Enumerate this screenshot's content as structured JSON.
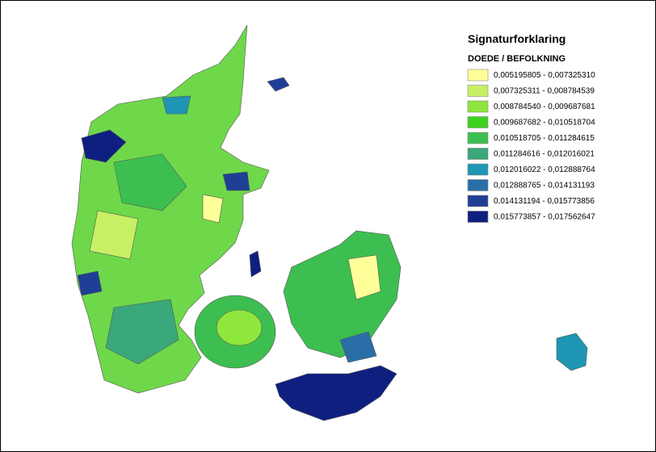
{
  "legend": {
    "title": "Signaturforklaring",
    "subtitle": "DOEDE / BEFOLKNING",
    "classes": [
      {
        "label": "0,005195805 - 0,007325310",
        "color": "#ffff99"
      },
      {
        "label": "0,007325311 - 0,008784539",
        "color": "#c8f064"
      },
      {
        "label": "0,008784540 - 0,009687681",
        "color": "#8fe63c"
      },
      {
        "label": "0,009687682 - 0,010518704",
        "color": "#3cd21e"
      },
      {
        "label": "0,010518705 - 0,011284615",
        "color": "#3cbf50"
      },
      {
        "label": "0,011284616 - 0,012016021",
        "color": "#3aa87a"
      },
      {
        "label": "0,012016022 - 0,012888764",
        "color": "#1e96b4"
      },
      {
        "label": "0,012888765 - 0,014131193",
        "color": "#2a6ea8"
      },
      {
        "label": "0,014131194 - 0,015773856",
        "color": "#1f3f96"
      },
      {
        "label": "0,015773857 - 0,017562647",
        "color": "#0f1f80"
      }
    ]
  }
}
